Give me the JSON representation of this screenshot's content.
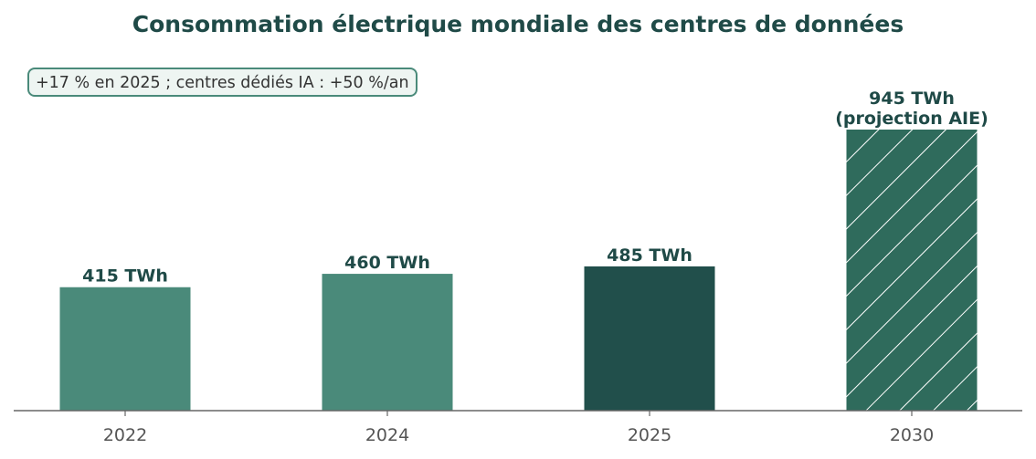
{
  "chart_data": {
    "type": "bar",
    "title": "Consommation électrique mondiale des centres de données",
    "annotation": "+17 % en 2025 ; centres dédiés IA : +50 %/an",
    "categories": [
      "2022",
      "2024",
      "2025",
      "2030"
    ],
    "values": [
      415,
      460,
      485,
      945
    ],
    "unit": "TWh",
    "value_labels": [
      [
        "415 TWh"
      ],
      [
        "460 TWh"
      ],
      [
        "485 TWh"
      ],
      [
        "945 TWh",
        "(projection AIE)"
      ]
    ],
    "bar_styles": [
      "solid",
      "solid",
      "solid",
      "hatched"
    ],
    "bar_colors": [
      "#4a8a7a",
      "#4a8a7a",
      "#214f4b",
      "#2f6b5c"
    ],
    "hatch_color": "#ffffff",
    "ylim": [
      0,
      1000
    ],
    "xlabel": "",
    "ylabel": "",
    "grid": false,
    "legend": "none"
  }
}
